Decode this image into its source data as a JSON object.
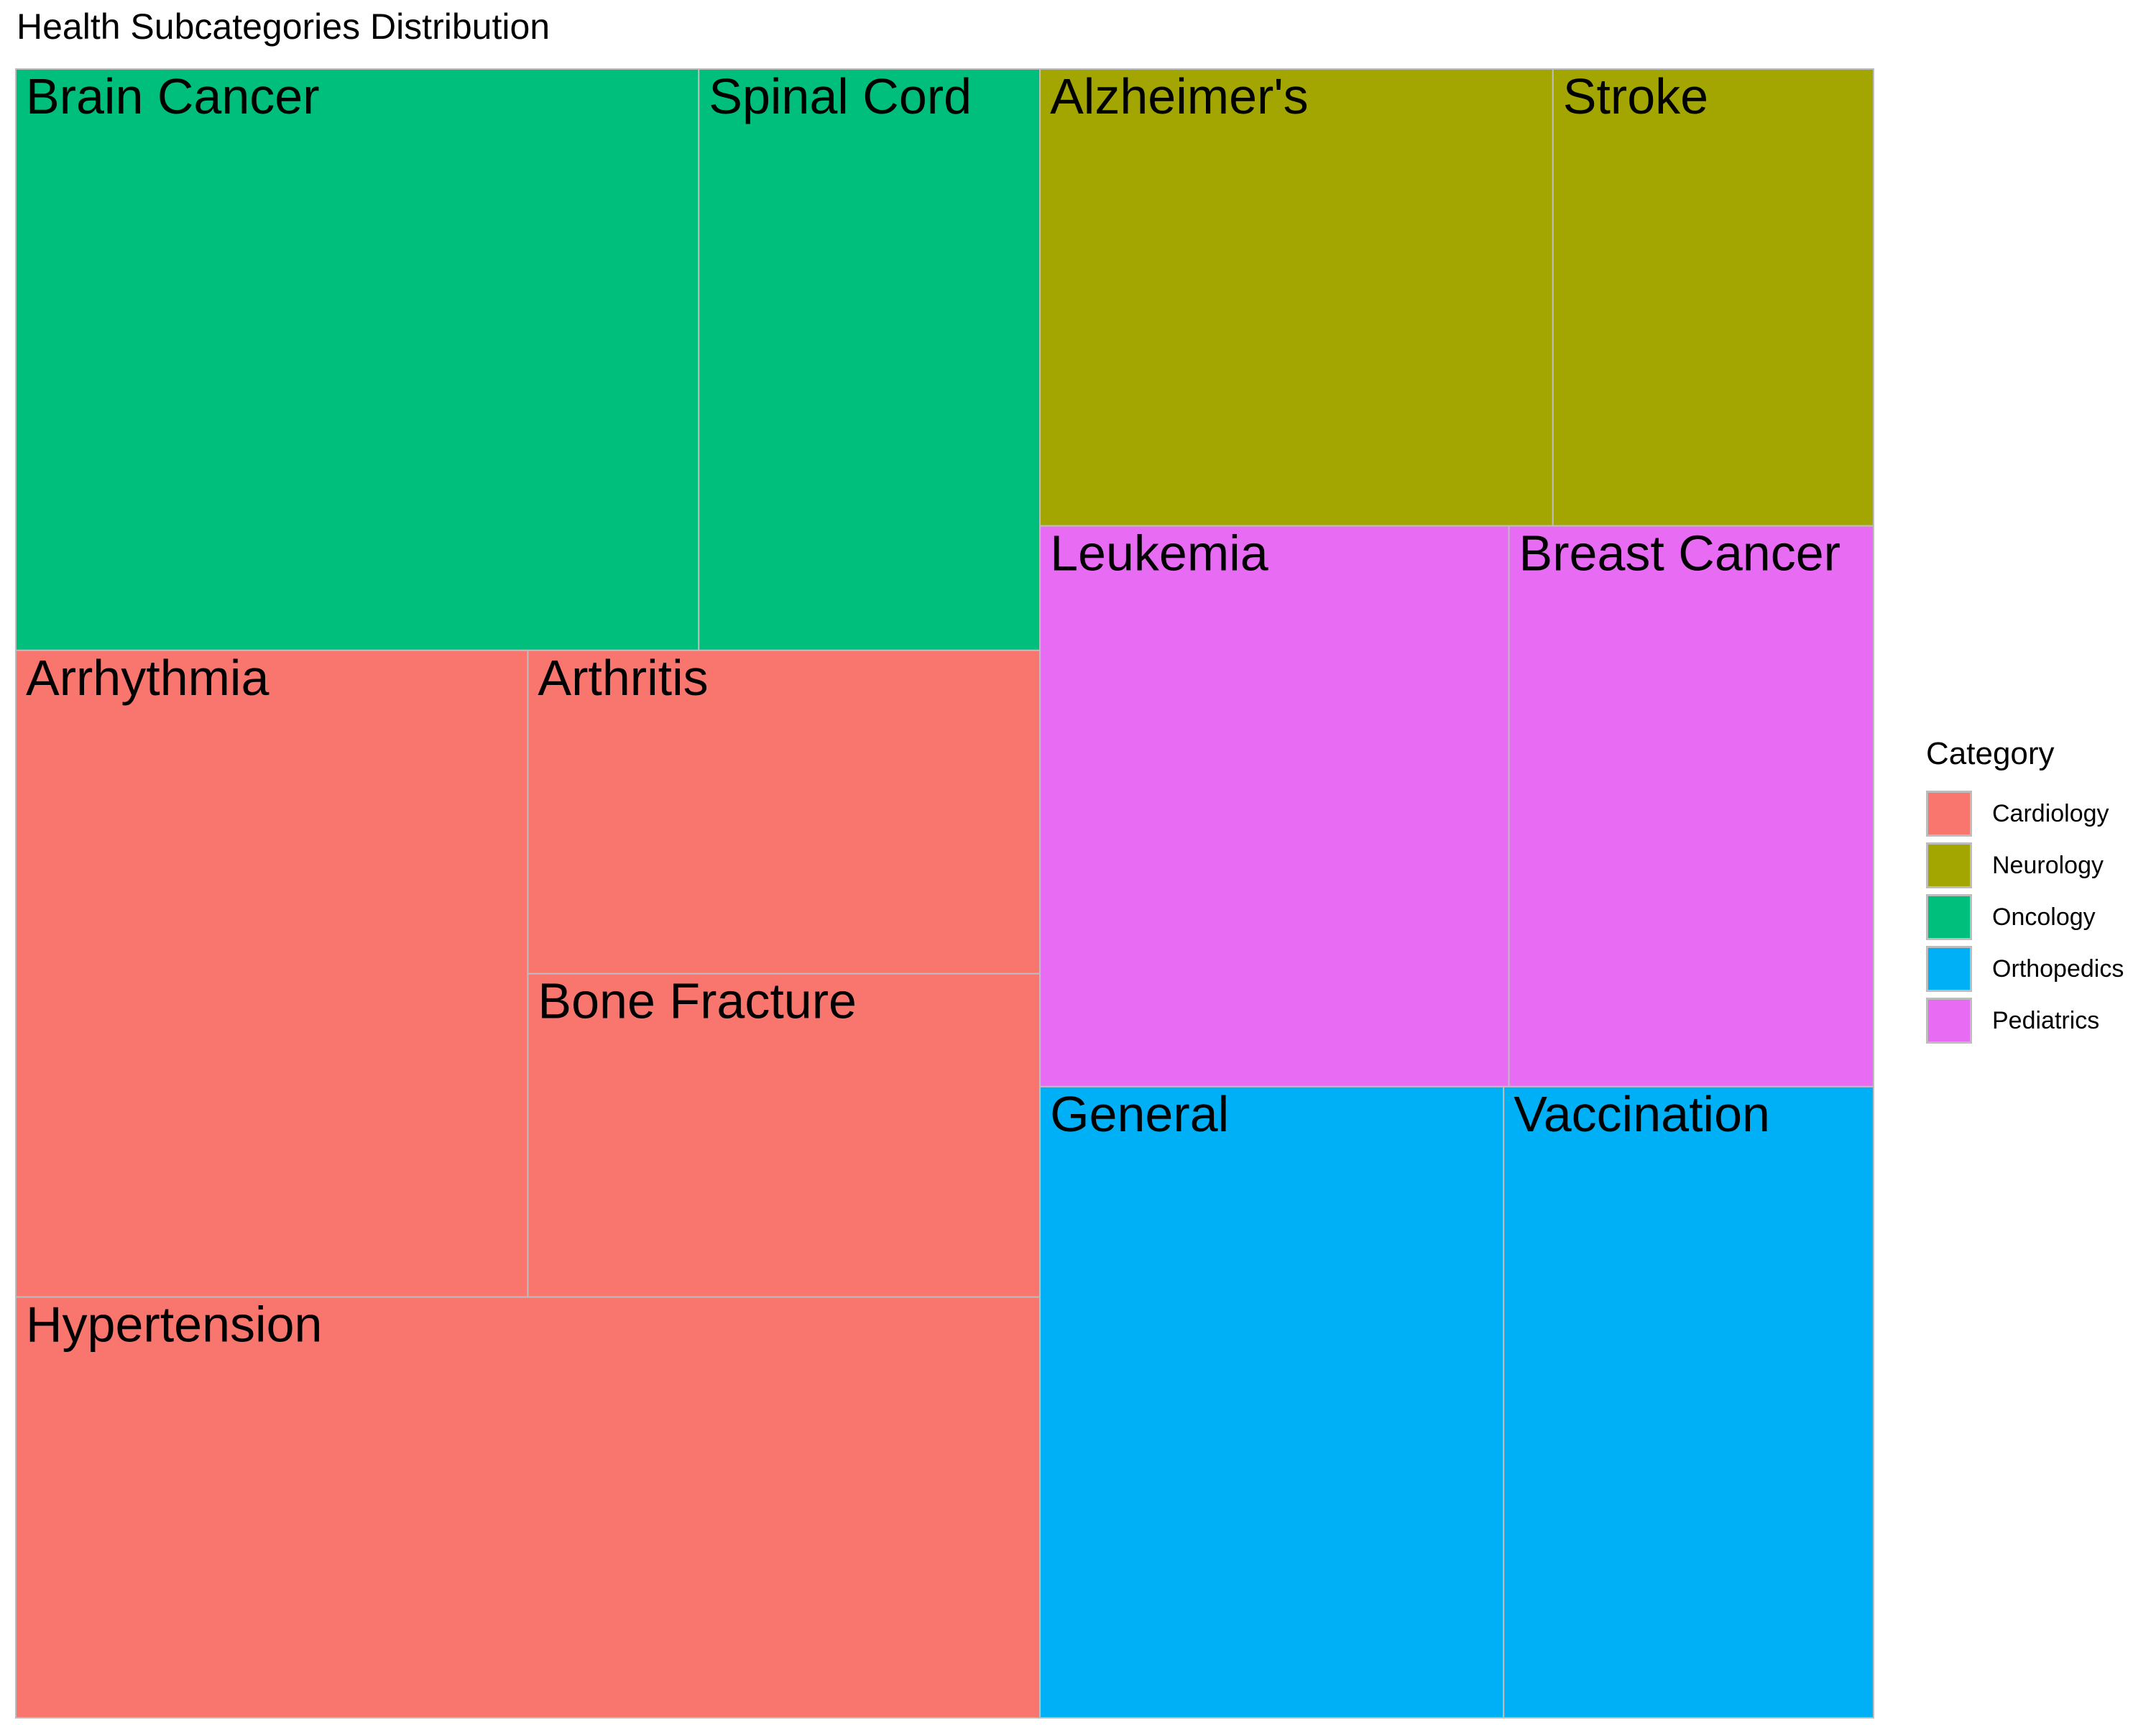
{
  "chart_data": {
    "type": "treemap",
    "title": "Health Subcategories Distribution",
    "legend": {
      "title": "Category",
      "position": "right",
      "entries": [
        {
          "name": "Cardiology",
          "color": "#F8766D"
        },
        {
          "name": "Neurology",
          "color": "#A3A500"
        },
        {
          "name": "Oncology",
          "color": "#00BF7D"
        },
        {
          "name": "Orthopedics",
          "color": "#00B0F6"
        },
        {
          "name": "Pediatrics",
          "color": "#E76BF3"
        }
      ]
    },
    "groups": [
      {
        "category": "Oncology",
        "items": [
          {
            "label": "Brain Cancer",
            "value": 12
          },
          {
            "label": "Spinal Cord",
            "value": 6
          }
        ]
      },
      {
        "category": "Cardiology",
        "items": [
          {
            "label": "Arrhythmia",
            "value": 10
          },
          {
            "label": "Arthritis",
            "value": 5
          },
          {
            "label": "Bone Fracture",
            "value": 5
          },
          {
            "label": "Hypertension",
            "value": 15
          }
        ]
      },
      {
        "category": "Neurology",
        "items": [
          {
            "label": "Alzheimer's",
            "value": 8
          },
          {
            "label": "Stroke",
            "value": 5
          }
        ]
      },
      {
        "category": "Pediatrics",
        "items": [
          {
            "label": "Leukemia",
            "value": 9
          },
          {
            "label": "Breast Cancer",
            "value": 7
          }
        ]
      },
      {
        "category": "Orthopedics",
        "items": [
          {
            "label": "General",
            "value": 11
          },
          {
            "label": "Vaccination",
            "value": 9
          }
        ]
      }
    ]
  }
}
